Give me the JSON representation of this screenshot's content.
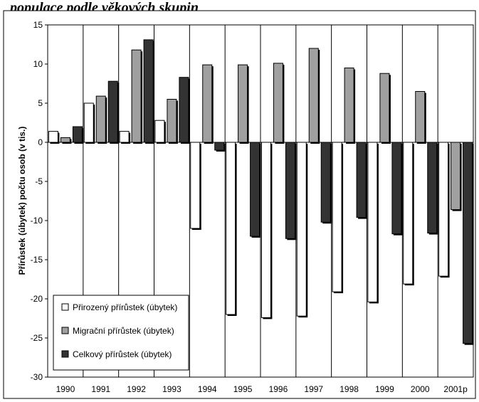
{
  "heading_fragment": "populace podle věkových skupin",
  "chart_data": {
    "type": "bar",
    "categories": [
      "1990",
      "1991",
      "1992",
      "1993",
      "1994",
      "1995",
      "1996",
      "1997",
      "1998",
      "1999",
      "2000",
      "2001p"
    ],
    "series": [
      {
        "name": "Přirozený přírůstek (úbytek)",
        "color": "#ffffff",
        "values": [
          1.4,
          5.0,
          1.4,
          2.8,
          -11.0,
          -22.0,
          -22.4,
          -22.2,
          -19.1,
          -20.4,
          -18.1,
          -17.1
        ]
      },
      {
        "name": "Migrační přírůstek (úbytek)",
        "color": "#a0a0a0",
        "values": [
          0.6,
          5.9,
          11.8,
          5.5,
          9.9,
          9.9,
          10.1,
          12.0,
          9.5,
          8.8,
          6.5,
          -8.6
        ]
      },
      {
        "name": "Celkový přírůstek (úbytek)",
        "color": "#333333",
        "values": [
          2.0,
          7.8,
          13.1,
          8.3,
          -1.0,
          -12.0,
          -12.3,
          -10.2,
          -9.6,
          -11.7,
          -11.6,
          -25.7
        ]
      }
    ],
    "ylabel": "Přírůstek (úbytek) počtu osob (v tis.)",
    "xlabel": "",
    "ylim": [
      -30,
      15
    ],
    "yticks": [
      15,
      10,
      5,
      0,
      -5,
      -10,
      -15,
      -20,
      -25,
      -30
    ],
    "grid": "vertical",
    "legend_position": "bottom-left"
  }
}
